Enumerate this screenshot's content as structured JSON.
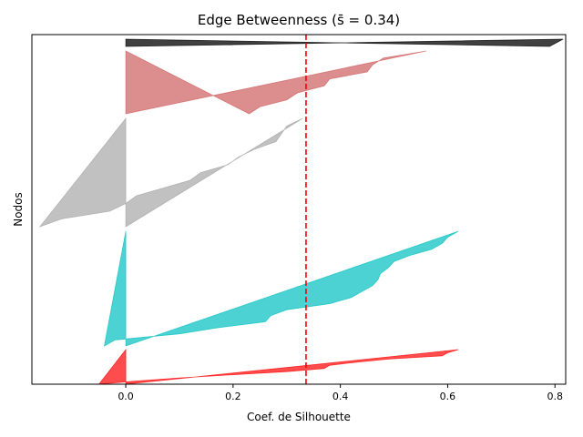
{
  "chart_data": {
    "type": "area",
    "title": "Edge Betweenness (s̄ = 0.34)",
    "xlabel": "Coef. de Silhouette",
    "ylabel": "Nodos",
    "xlim": [
      -0.175,
      0.82
    ],
    "xticks": [
      "0.0",
      "0.2",
      "0.4",
      "0.6",
      "0.8"
    ],
    "xtick_values": [
      0.0,
      0.2,
      0.4,
      0.6,
      0.8
    ],
    "average_silhouette": 0.336,
    "average_line_color": "#ff0000",
    "grid": false,
    "clusters": [
      {
        "color": "#ff0000",
        "opacity": 0.7,
        "values": [
          0.62,
          0.6,
          0.59,
          0.49,
          0.43,
          0.38,
          0.37,
          0.3,
          0.2,
          0.1,
          0.02,
          -0.05
        ]
      },
      {
        "color": "#00bfbf",
        "opacity": 0.7,
        "values": [
          0.62,
          0.6,
          0.59,
          0.57,
          0.53,
          0.5,
          0.49,
          0.475,
          0.47,
          0.46,
          0.44,
          0.42,
          0.38,
          0.3,
          0.27,
          0.26,
          0.17,
          0.1,
          -0.02,
          -0.04
        ]
      },
      {
        "color": "#a0a0a0",
        "opacity": 0.65,
        "values": [
          0.33,
          0.3,
          0.29,
          0.28,
          0.24,
          0.21,
          0.19,
          0.14,
          0.12,
          0.07,
          0.02,
          0.0,
          -0.03,
          -0.12,
          -0.16
        ]
      },
      {
        "color": "#cd5c5c",
        "opacity": 0.7,
        "values": [
          0.56,
          0.48,
          0.46,
          0.45,
          0.38,
          0.37,
          0.32,
          0.3,
          0.25,
          0.23
        ]
      },
      {
        "color": "#000000",
        "opacity": 0.75,
        "values": [
          0.815,
          0.79
        ]
      }
    ]
  }
}
